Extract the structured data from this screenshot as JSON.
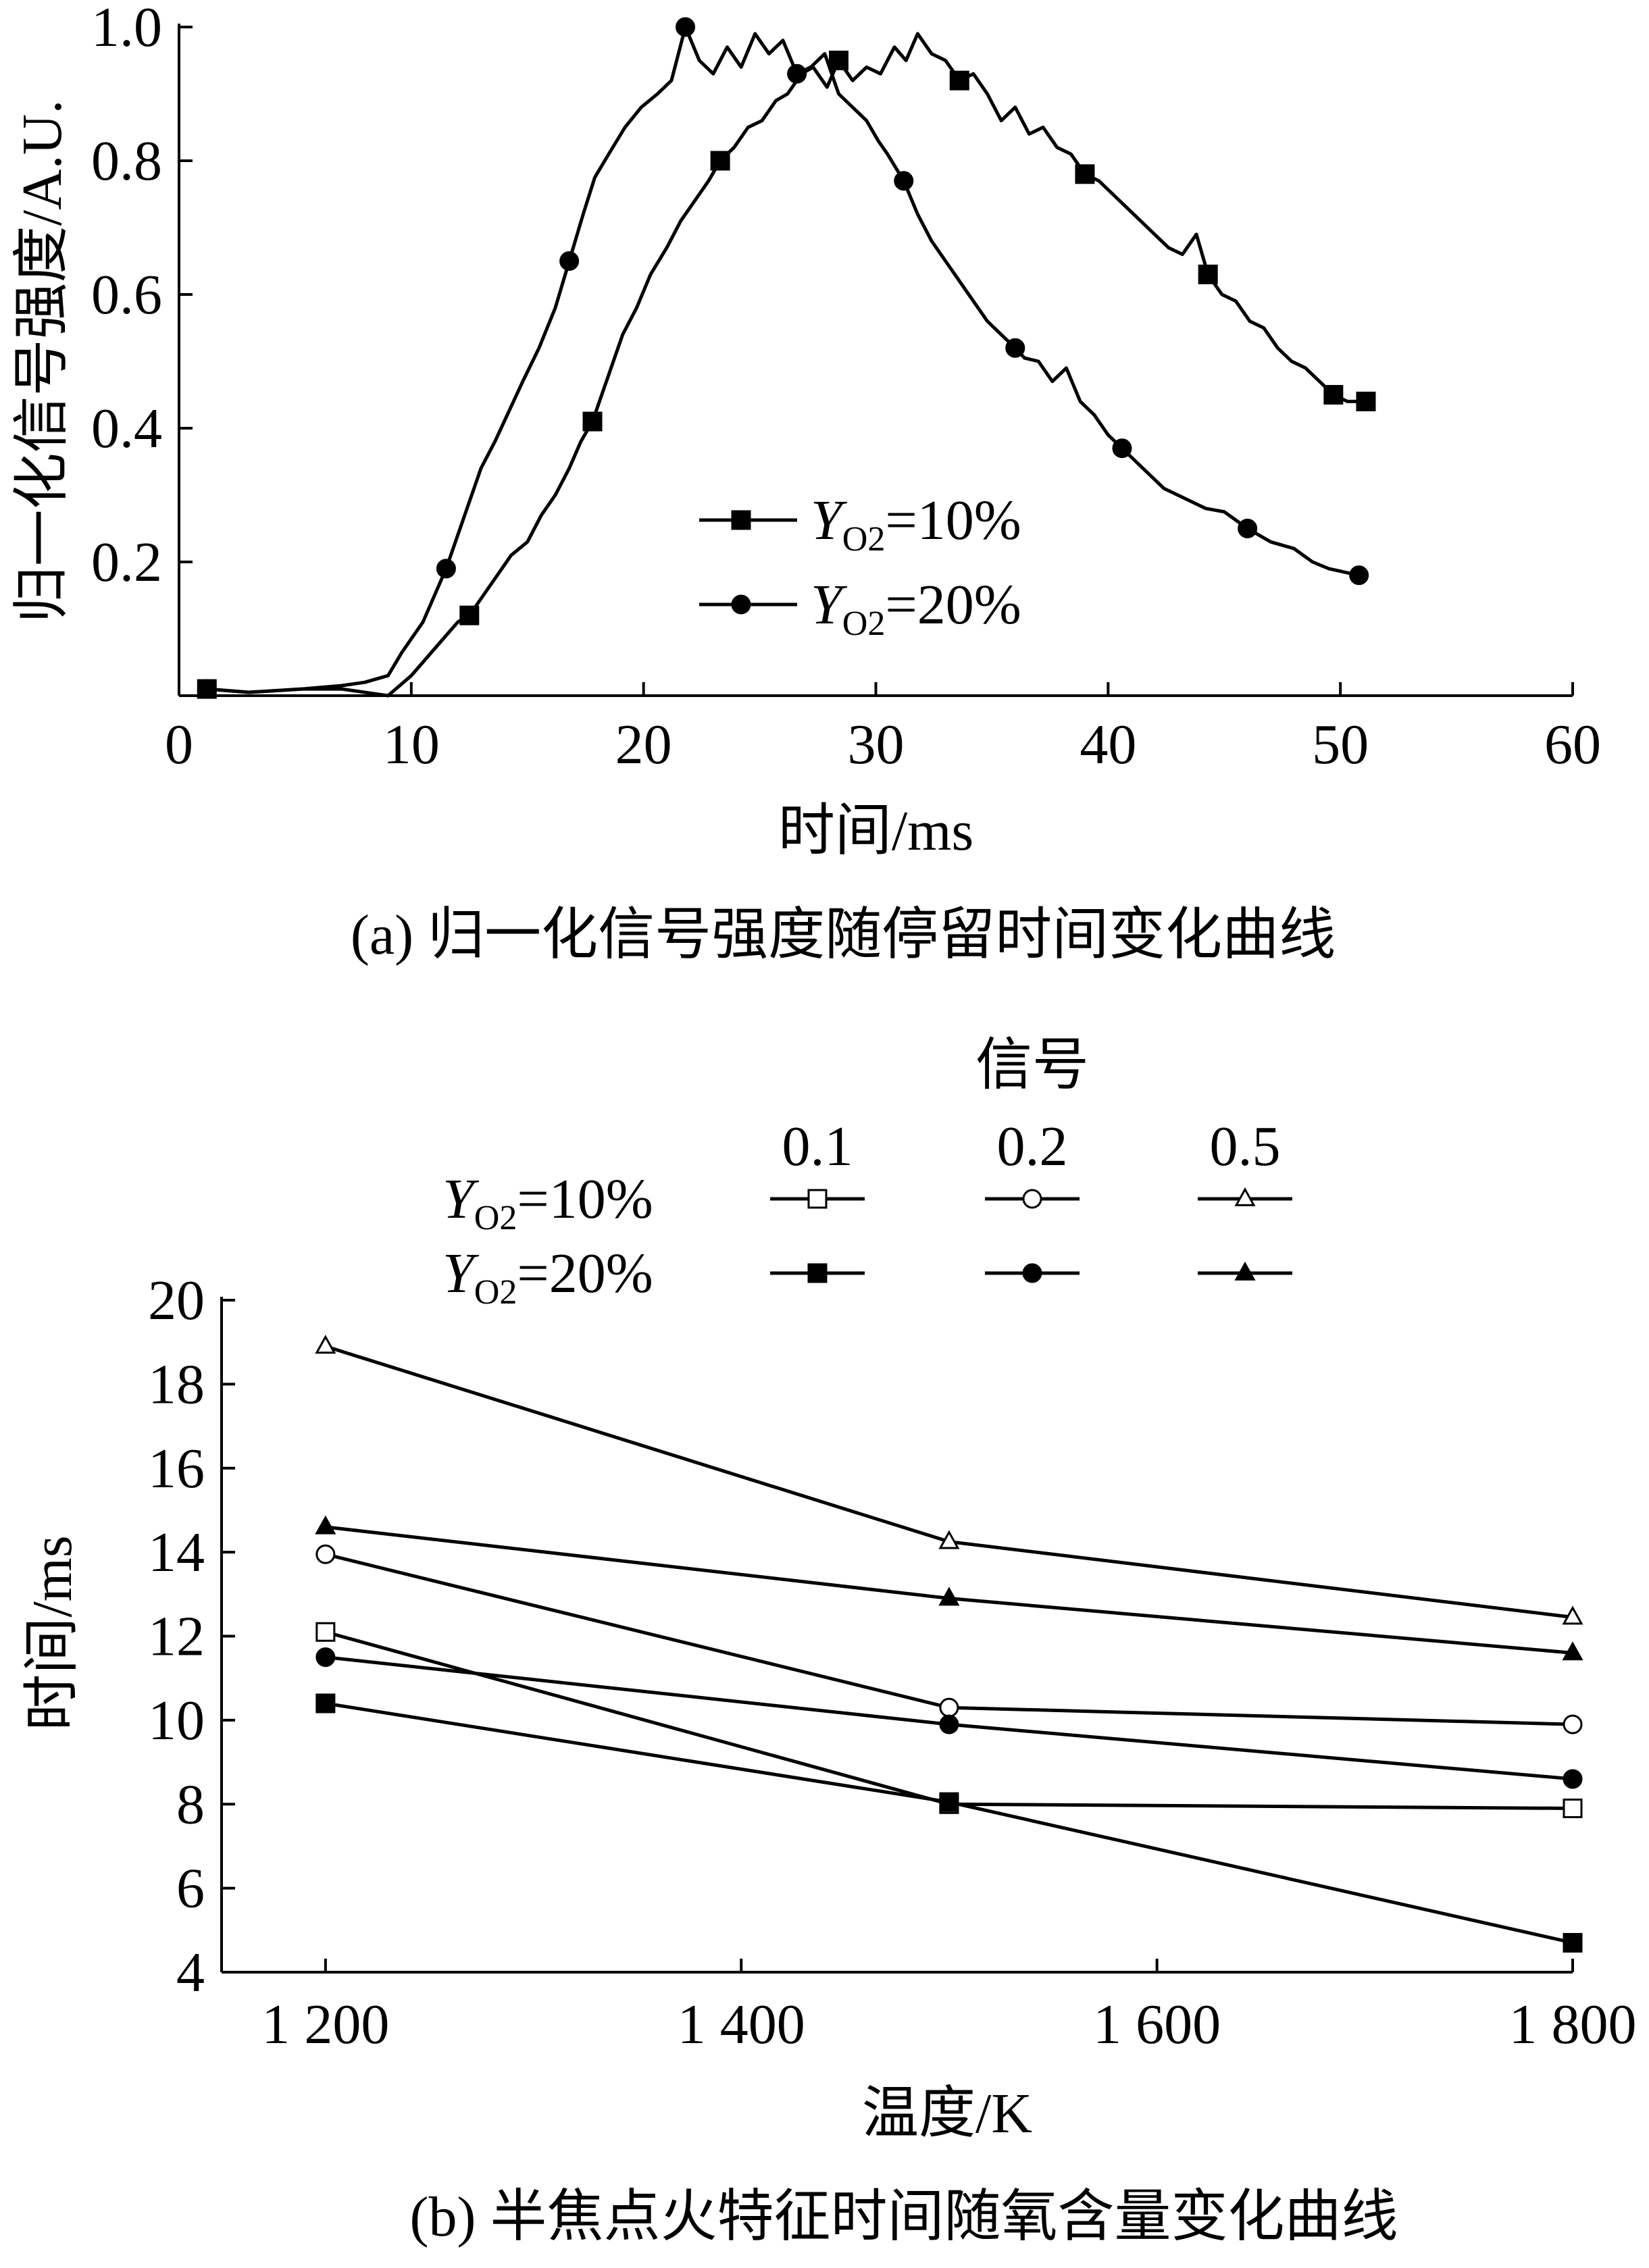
{
  "chart_data": [
    {
      "type": "line",
      "caption": "(a)  归一化信号强度随停留时间变化曲线",
      "xlabel": "时间/ms",
      "ylabel": "归一化信号强度/A.U.",
      "xlim": [
        0,
        60
      ],
      "ylim": [
        0,
        1.0
      ],
      "x_ticks": [
        0,
        10,
        20,
        30,
        40,
        50,
        60
      ],
      "x_tick_labels": [
        "0",
        "10",
        "20",
        "30",
        "40",
        "50",
        "60"
      ],
      "y_ticks": [
        0.2,
        0.4,
        0.6,
        0.8,
        1.0
      ],
      "y_tick_labels": [
        "0.2",
        "0.4",
        "0.6",
        "0.8",
        "1.0"
      ],
      "grid": false,
      "legend_position": "center",
      "series": [
        {
          "name": "=10%",
          "legend_symbol": "Y",
          "legend_subscript": "O2",
          "marker": "square-filled",
          "x": [
            1.2,
            3,
            5.3,
            7,
            8,
            9,
            10,
            11,
            12,
            12.5,
            13.1,
            13.7,
            14.3,
            15,
            15.6,
            16.2,
            16.8,
            17.3,
            17.8,
            18.5,
            19.1,
            19.7,
            20.3,
            21,
            21.6,
            22.2,
            22.8,
            23.3,
            23.9,
            24.5,
            25.1,
            25.7,
            26.2,
            26.8,
            27.3,
            27.9,
            28.4,
            29,
            29.6,
            30.2,
            30.8,
            31.3,
            31.8,
            32.4,
            33,
            33.6,
            34.2,
            34.8,
            35.4,
            36,
            36.6,
            37.2,
            37.8,
            38.4,
            39,
            39.6,
            40.2,
            40.8,
            41.4,
            42,
            42.6,
            43.2,
            43.8,
            44.3,
            44.9,
            45.5,
            46.1,
            46.7,
            47.3,
            47.9,
            48.5,
            49.1,
            49.7,
            50.3,
            51.1
          ],
          "y": [
            0.01,
            0.005,
            0.01,
            0.01,
            0.005,
            0.0,
            0.03,
            0.07,
            0.11,
            0.12,
            0.15,
            0.18,
            0.21,
            0.23,
            0.27,
            0.3,
            0.34,
            0.38,
            0.41,
            0.48,
            0.54,
            0.58,
            0.63,
            0.67,
            0.71,
            0.74,
            0.77,
            0.8,
            0.82,
            0.85,
            0.86,
            0.89,
            0.9,
            0.93,
            0.94,
            0.91,
            0.95,
            0.92,
            0.94,
            0.93,
            0.97,
            0.95,
            0.99,
            0.96,
            0.95,
            0.92,
            0.93,
            0.9,
            0.86,
            0.88,
            0.84,
            0.85,
            0.82,
            0.81,
            0.78,
            0.77,
            0.75,
            0.73,
            0.71,
            0.69,
            0.67,
            0.66,
            0.69,
            0.63,
            0.6,
            0.59,
            0.56,
            0.55,
            0.52,
            0.5,
            0.49,
            0.47,
            0.45,
            0.44,
            0.44
          ]
        },
        {
          "name": "=20%",
          "legend_symbol": "Y",
          "legend_subscript": "O2",
          "marker": "circle-filled",
          "x": [
            1.2,
            3,
            5.3,
            7,
            8,
            9,
            9.6,
            10.5,
            11.5,
            12.3,
            13,
            13.6,
            14,
            14.8,
            15.5,
            16.2,
            16.8,
            17.4,
            17.9,
            18.5,
            19.2,
            19.9,
            20.6,
            21.2,
            21.8,
            22.4,
            23,
            23.6,
            24.2,
            24.8,
            25.4,
            26,
            26.6,
            27.2,
            27.8,
            28.4,
            29,
            29.6,
            30.1,
            30.5,
            31.2,
            31.8,
            32.4,
            33,
            33.6,
            34.2,
            34.8,
            35.4,
            36,
            36.4,
            37,
            37.6,
            38.2,
            38.8,
            39.4,
            40,
            40.6,
            41.2,
            41.8,
            42.4,
            43,
            43.6,
            44.2,
            45,
            46,
            47,
            48,
            48.8,
            49.5,
            50.8
          ],
          "y": [
            0.01,
            0.005,
            0.01,
            0.015,
            0.02,
            0.03,
            0.065,
            0.11,
            0.19,
            0.27,
            0.34,
            0.38,
            0.41,
            0.47,
            0.52,
            0.58,
            0.65,
            0.72,
            0.775,
            0.81,
            0.85,
            0.88,
            0.9,
            0.92,
            1.0,
            0.95,
            0.93,
            0.97,
            0.94,
            0.99,
            0.96,
            0.98,
            0.93,
            0.94,
            0.96,
            0.9,
            0.88,
            0.86,
            0.83,
            0.81,
            0.77,
            0.72,
            0.68,
            0.65,
            0.62,
            0.59,
            0.56,
            0.54,
            0.52,
            0.505,
            0.5,
            0.47,
            0.49,
            0.44,
            0.42,
            0.39,
            0.37,
            0.35,
            0.33,
            0.31,
            0.3,
            0.29,
            0.28,
            0.275,
            0.25,
            0.23,
            0.22,
            0.2,
            0.19,
            0.18
          ]
        }
      ]
    },
    {
      "type": "line",
      "caption": "(b)  半焦点火特征时间随氧含量变化曲线",
      "xlabel": "温度/K",
      "ylabel": "时间/ms",
      "xlim": [
        1150,
        1800
      ],
      "ylim": [
        4,
        20
      ],
      "x_ticks": [
        1200,
        1400,
        1600,
        1800
      ],
      "x_tick_labels": [
        "1 200",
        "1 400",
        "1 600",
        "1 800"
      ],
      "y_ticks": [
        4,
        6,
        8,
        10,
        12,
        14,
        16,
        18,
        20
      ],
      "y_tick_labels": [
        "4",
        "6",
        "8",
        "10",
        "12",
        "14",
        "16",
        "18",
        "20"
      ],
      "grid": false,
      "legend_position": "top",
      "legend_title": "信号",
      "legend_columns": [
        "0.1",
        "0.2",
        "0.5"
      ],
      "legend_rows": [
        {
          "symbol": "Y",
          "subscript": "O2",
          "label": "=10%"
        },
        {
          "symbol": "Y",
          "subscript": "O2",
          "label": "=20%"
        }
      ],
      "x": [
        1200,
        1500,
        1800
      ],
      "series": [
        {
          "group": "=10%",
          "signal": "0.1",
          "marker": "square-open",
          "values": [
            12.1,
            8.0,
            7.9
          ]
        },
        {
          "group": "=10%",
          "signal": "0.2",
          "marker": "circle-open",
          "values": [
            13.95,
            10.3,
            9.9
          ]
        },
        {
          "group": "=10%",
          "signal": "0.5",
          "marker": "triangle-open",
          "values": [
            18.9,
            14.25,
            12.45
          ]
        },
        {
          "group": "=20%",
          "signal": "0.1",
          "marker": "square-filled",
          "values": [
            10.4,
            8.05,
            4.7
          ]
        },
        {
          "group": "=20%",
          "signal": "0.2",
          "marker": "circle-filled",
          "values": [
            11.5,
            9.9,
            8.6
          ]
        },
        {
          "group": "=20%",
          "signal": "0.5",
          "marker": "triangle-filled",
          "values": [
            14.6,
            12.9,
            11.6
          ]
        }
      ]
    }
  ]
}
